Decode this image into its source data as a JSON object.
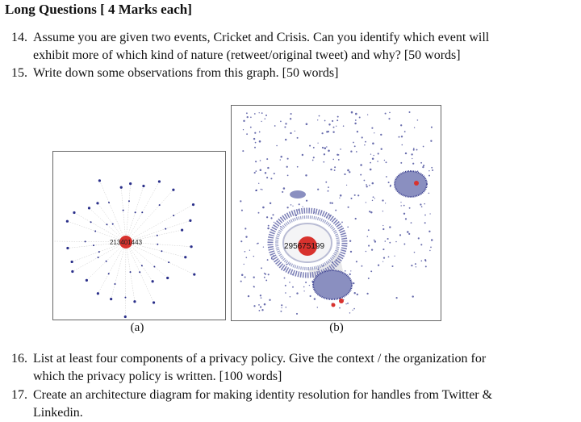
{
  "heading": "Long Questions [ 4 Marks each]",
  "questions": [
    {
      "number": "14.",
      "line1": "Assume you are given two events, Cricket and Crisis. Can you identify which event will",
      "line2": "exhibit more of which kind of nature (retweet/original tweet) and why? [50 words]"
    },
    {
      "number": "15.",
      "line1": "Write down some observations from this graph. [50 words]",
      "line2": ""
    },
    {
      "number": "16.",
      "line1": "List at least four components of a privacy policy. Give the context / the organization for",
      "line2": "which the privacy policy is written. [100 words]"
    },
    {
      "number": "17.",
      "line1": "Create an architecture diagram for making identity resolution for handles from Twitter &",
      "line2": "Linkedin."
    }
  ],
  "figures": [
    {
      "caption": "(a)",
      "node_label": "213401443"
    },
    {
      "caption": "(b)",
      "node_label": "295675199"
    }
  ],
  "colors": {
    "node_red": "#d8322e",
    "node_blue": "#2a2f8a",
    "edge_gray": "#c9c9c9"
  }
}
